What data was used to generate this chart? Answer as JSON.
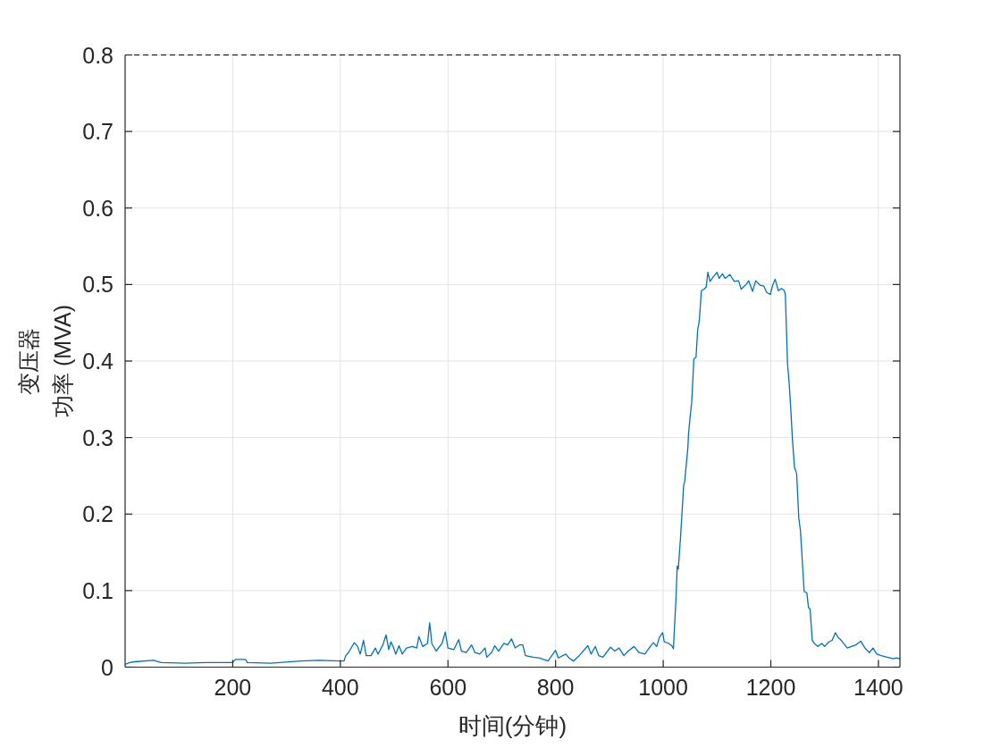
{
  "chart_data": {
    "type": "line",
    "xlabel": "时间(分钟)",
    "ylabel": "变压器功率 (MVA)",
    "x": [
      1,
      9,
      17,
      53,
      67,
      111,
      150,
      200,
      205,
      224,
      227,
      271,
      327,
      360,
      399,
      407,
      410,
      415,
      426,
      432,
      437,
      443,
      448,
      457,
      465,
      470,
      479,
      485,
      490,
      494,
      498,
      503,
      509,
      515,
      523,
      534,
      542,
      546,
      553,
      562,
      566,
      570,
      578,
      589,
      595,
      600,
      611,
      620,
      625,
      634,
      644,
      650,
      659,
      669,
      672,
      681,
      687,
      694,
      704,
      711,
      718,
      725,
      733,
      739,
      744,
      758,
      769,
      786,
      800,
      805,
      819,
      825,
      833,
      844,
      860,
      866,
      874,
      880,
      888,
      902,
      910,
      918,
      927,
      935,
      946,
      955,
      966,
      976,
      982,
      988,
      993,
      999,
      1002,
      1010,
      1016,
      1019,
      1024,
      1026,
      1028,
      1032,
      1035,
      1038,
      1040,
      1046,
      1047,
      1050,
      1053,
      1057,
      1061,
      1064,
      1067,
      1071,
      1076,
      1080,
      1083,
      1087,
      1093,
      1100,
      1104,
      1110,
      1115,
      1124,
      1132,
      1140,
      1145,
      1154,
      1159,
      1166,
      1172,
      1180,
      1187,
      1192,
      1199,
      1203,
      1208,
      1214,
      1220,
      1225,
      1227,
      1231,
      1234,
      1237,
      1240,
      1244,
      1248,
      1252,
      1255,
      1262,
      1267,
      1270,
      1273,
      1277,
      1281,
      1287,
      1295,
      1300,
      1308,
      1314,
      1320,
      1325,
      1331,
      1342,
      1350,
      1358,
      1367,
      1375,
      1383,
      1390,
      1397,
      1405,
      1416,
      1428,
      1433,
      1440
    ],
    "values": [
      0.004,
      0.006,
      0.007,
      0.009,
      0.006,
      0.005,
      0.006,
      0.006,
      0.01,
      0.01,
      0.006,
      0.005,
      0.008,
      0.009,
      0.008,
      0.008,
      0.015,
      0.019,
      0.032,
      0.027,
      0.017,
      0.035,
      0.015,
      0.015,
      0.025,
      0.017,
      0.029,
      0.042,
      0.023,
      0.033,
      0.027,
      0.017,
      0.028,
      0.017,
      0.025,
      0.027,
      0.025,
      0.04,
      0.027,
      0.031,
      0.058,
      0.031,
      0.021,
      0.031,
      0.046,
      0.025,
      0.023,
      0.036,
      0.021,
      0.019,
      0.029,
      0.019,
      0.017,
      0.025,
      0.013,
      0.019,
      0.028,
      0.021,
      0.031,
      0.029,
      0.037,
      0.025,
      0.029,
      0.029,
      0.015,
      0.013,
      0.012,
      0.008,
      0.022,
      0.012,
      0.017,
      0.012,
      0.008,
      0.015,
      0.028,
      0.017,
      0.027,
      0.015,
      0.013,
      0.026,
      0.021,
      0.025,
      0.015,
      0.021,
      0.027,
      0.019,
      0.017,
      0.027,
      0.032,
      0.027,
      0.039,
      0.045,
      0.033,
      0.031,
      0.028,
      0.024,
      0.093,
      0.132,
      0.128,
      0.167,
      0.202,
      0.237,
      0.243,
      0.288,
      0.304,
      0.327,
      0.346,
      0.403,
      0.405,
      0.44,
      0.452,
      0.492,
      0.494,
      0.497,
      0.516,
      0.504,
      0.51,
      0.516,
      0.508,
      0.514,
      0.508,
      0.513,
      0.504,
      0.505,
      0.494,
      0.5,
      0.505,
      0.491,
      0.505,
      0.499,
      0.498,
      0.49,
      0.487,
      0.498,
      0.507,
      0.492,
      0.495,
      0.492,
      0.487,
      0.397,
      0.372,
      0.339,
      0.3,
      0.261,
      0.253,
      0.195,
      0.179,
      0.099,
      0.097,
      0.078,
      0.076,
      0.035,
      0.031,
      0.027,
      0.031,
      0.027,
      0.033,
      0.035,
      0.045,
      0.039,
      0.035,
      0.025,
      0.027,
      0.029,
      0.034,
      0.025,
      0.019,
      0.025,
      0.017,
      0.015,
      0.013,
      0.011,
      0.012,
      0.011
    ],
    "color": "#0072bd",
    "xlim": [
      0,
      1440
    ],
    "ylim": [
      0,
      0.8
    ],
    "xticks": [
      200,
      400,
      600,
      800,
      1000,
      1200,
      1400
    ],
    "yticks": [
      0,
      0.1,
      0.2,
      0.3,
      0.4,
      0.5,
      0.6,
      0.7,
      0.8
    ],
    "grid": true,
    "ref_lines": [
      {
        "axis": "y",
        "value": 0.8,
        "color": "#000000",
        "line_style": "dashed"
      }
    ]
  }
}
